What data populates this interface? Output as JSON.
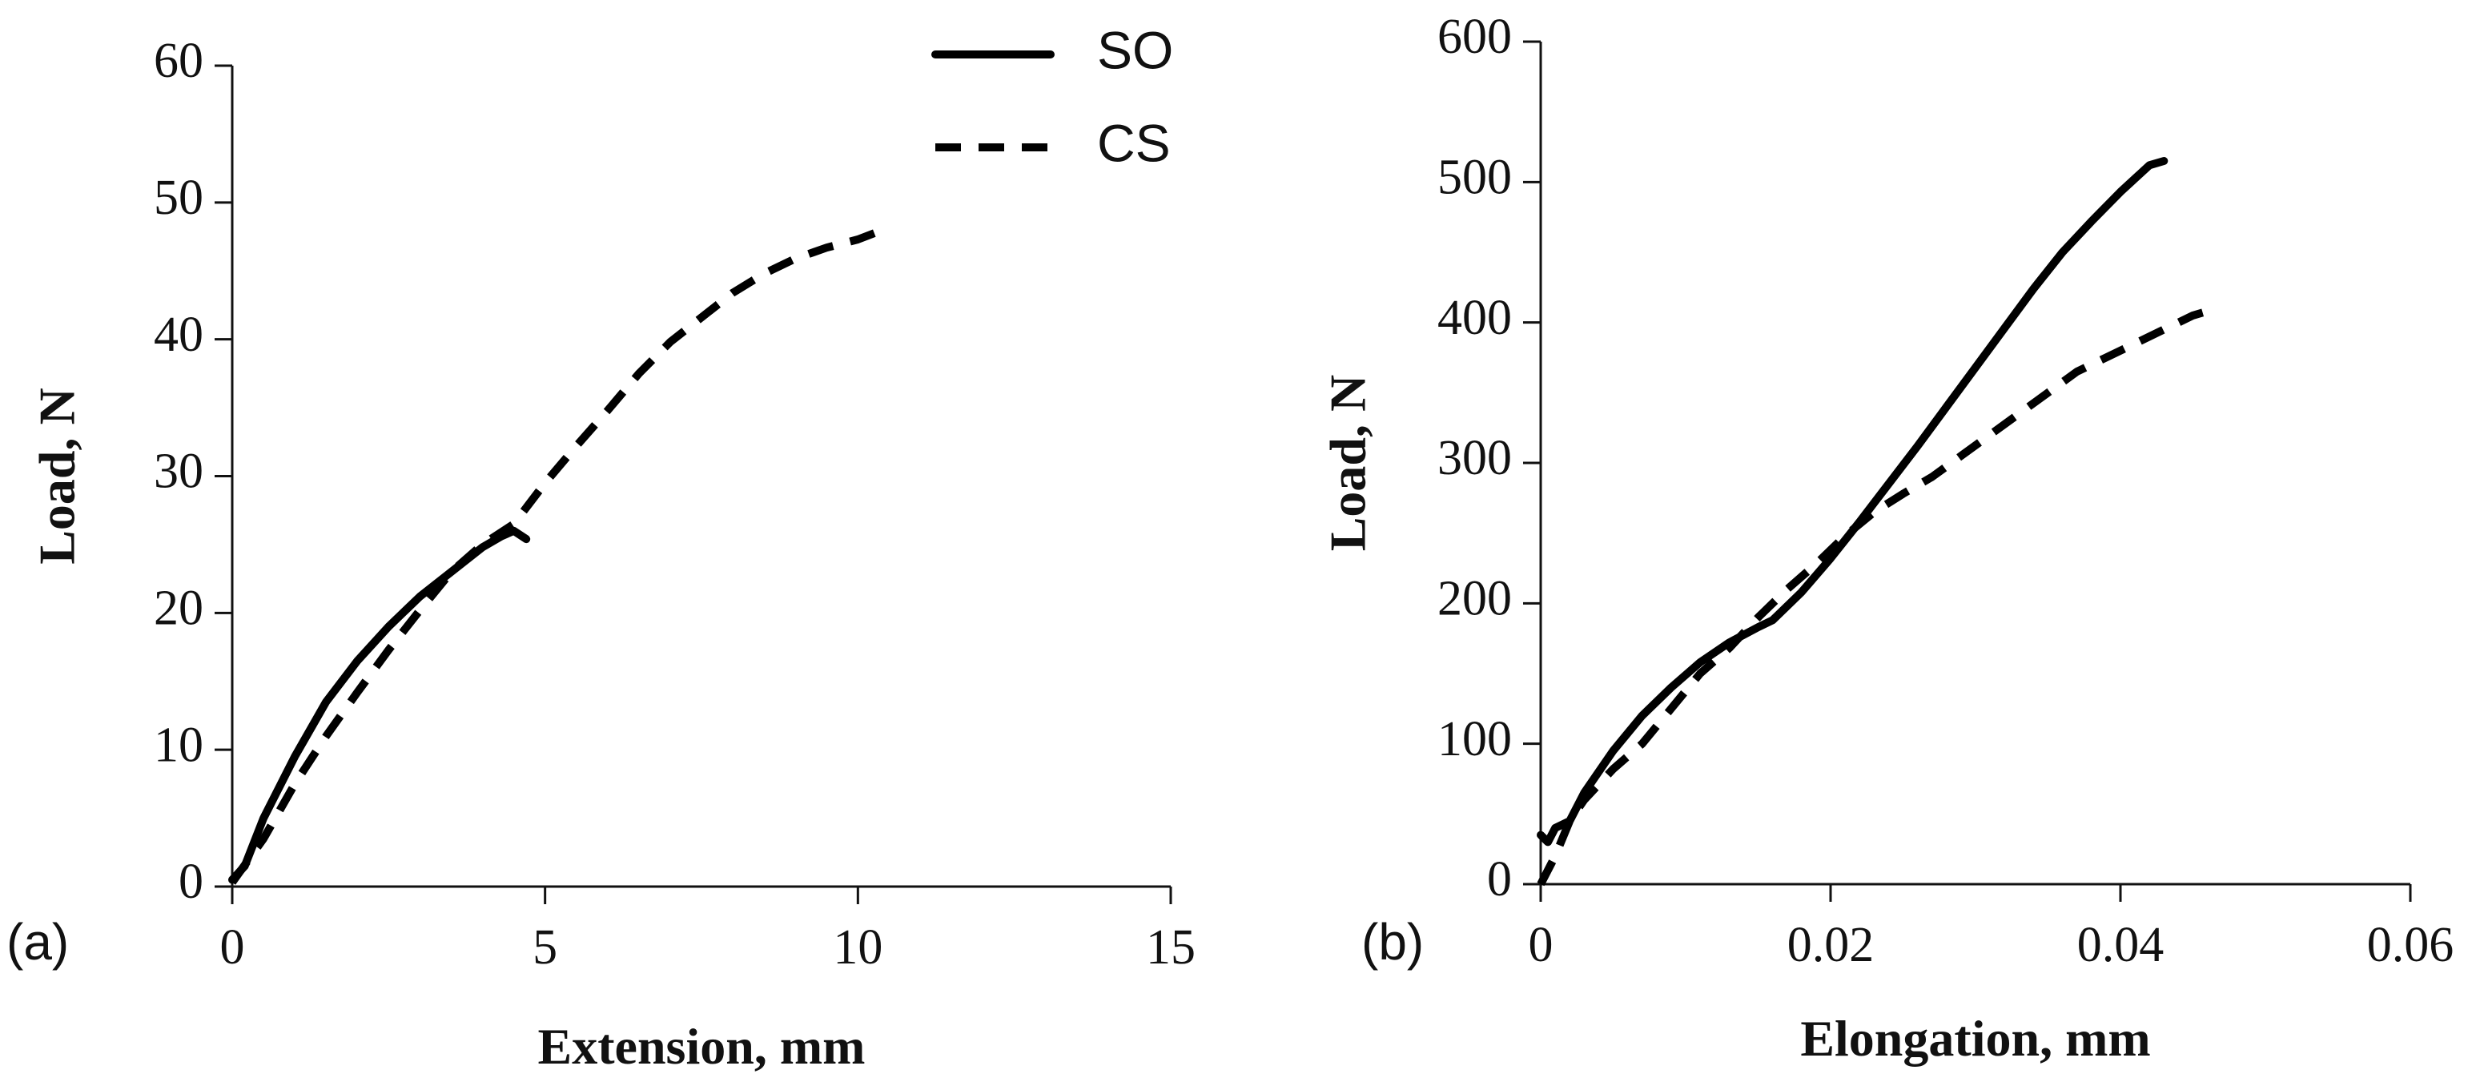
{
  "chart_data": [
    {
      "type": "line",
      "panel_label": "(a)",
      "xlabel": "Extension, mm",
      "ylabel": "Load, N",
      "xlim": [
        0,
        15
      ],
      "ylim": [
        0,
        60
      ],
      "x_ticks": [
        "0",
        "5",
        "10",
        "15"
      ],
      "y_ticks": [
        "0",
        "10",
        "20",
        "30",
        "40",
        "50",
        "60"
      ],
      "legend": {
        "placement": "top-right",
        "entries": [
          "SO",
          "CS"
        ]
      },
      "series": [
        {
          "name": "SO",
          "style": "solid",
          "x": [
            0,
            0.2,
            0.5,
            1.0,
            1.5,
            2.0,
            2.5,
            3.0,
            3.5,
            4.0,
            4.3,
            4.5,
            4.7
          ],
          "y": [
            0.5,
            1.5,
            5.0,
            9.5,
            13.5,
            16.5,
            19.0,
            21.2,
            23.0,
            24.8,
            25.6,
            26.0,
            25.4
          ]
        },
        {
          "name": "CS",
          "style": "dashed",
          "x": [
            0,
            0.5,
            1.0,
            1.5,
            2.0,
            2.5,
            3.0,
            3.5,
            4.0,
            4.5,
            5.0,
            5.5,
            6.0,
            6.5,
            7.0,
            7.5,
            8.0,
            8.5,
            9.0,
            9.5,
            10.0,
            10.4
          ],
          "y": [
            0.3,
            3.5,
            7.5,
            11.0,
            14.2,
            17.3,
            20.2,
            23.0,
            25.0,
            26.5,
            29.5,
            32.2,
            34.8,
            37.5,
            39.8,
            41.6,
            43.4,
            44.8,
            45.9,
            46.7,
            47.3,
            48.0
          ]
        }
      ]
    },
    {
      "type": "line",
      "panel_label": "(b)",
      "xlabel": "Elongation, mm",
      "ylabel": "Load, N",
      "xlim": [
        0,
        0.06
      ],
      "ylim": [
        0,
        600
      ],
      "x_ticks": [
        "0",
        "0.02",
        "0.04",
        "0.06"
      ],
      "y_ticks": [
        "0",
        "100",
        "200",
        "300",
        "400",
        "500",
        "600"
      ],
      "series": [
        {
          "name": "SO",
          "style": "solid",
          "x": [
            0,
            0.0005,
            0.001,
            0.002,
            0.003,
            0.005,
            0.007,
            0.009,
            0.011,
            0.013,
            0.015,
            0.016,
            0.018,
            0.02,
            0.022,
            0.024,
            0.026,
            0.028,
            0.03,
            0.032,
            0.034,
            0.036,
            0.038,
            0.04,
            0.042,
            0.043
          ],
          "y": [
            35,
            30,
            40,
            45,
            65,
            95,
            120,
            140,
            158,
            172,
            183,
            188,
            208,
            232,
            258,
            285,
            312,
            340,
            368,
            396,
            424,
            450,
            472,
            493,
            512,
            515
          ]
        },
        {
          "name": "CS",
          "style": "dashed",
          "x": [
            0,
            0.001,
            0.002,
            0.003,
            0.005,
            0.007,
            0.009,
            0.011,
            0.013,
            0.015,
            0.017,
            0.019,
            0.021,
            0.023,
            0.025,
            0.027,
            0.029,
            0.031,
            0.033,
            0.035,
            0.037,
            0.039,
            0.041,
            0.043,
            0.045,
            0.046
          ],
          "y": [
            0,
            20,
            45,
            60,
            82,
            100,
            125,
            150,
            168,
            190,
            210,
            228,
            248,
            265,
            278,
            290,
            305,
            320,
            335,
            350,
            365,
            375,
            385,
            395,
            405,
            408
          ]
        }
      ]
    }
  ]
}
